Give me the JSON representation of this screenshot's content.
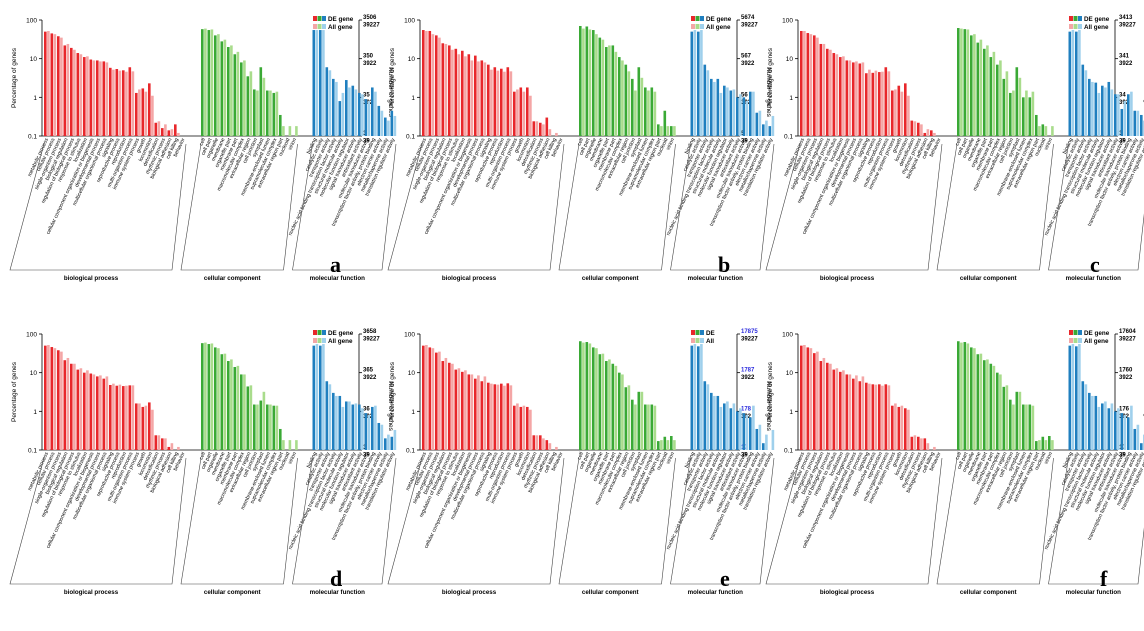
{
  "figure": {
    "categories": {
      "biological process": [
        "metabolic process",
        "cellular process",
        "single-organism process",
        "biological regulation",
        "regulation of biological process",
        "response to stimulus",
        "localization",
        "cellular component organization or biogenesis",
        "developmental process",
        "multicellular organismal process",
        "signaling",
        "reproductive process",
        "reproduction",
        "multi-organism process",
        "immune system process",
        "growth",
        "locomotion",
        "detoxification",
        "rhythmic process",
        "biological adhesion",
        "cell killing",
        "behavior"
      ],
      "cellular component": [
        "cell",
        "cell part",
        "organelle",
        "membrane",
        "organelle part",
        "membrane part",
        "macromolecular complex",
        "extracellular region",
        "cell junction",
        "symplast",
        "membrane-enclosed lumen",
        "supramolecular complex",
        "extracellular region part",
        "nucleoid",
        "virion"
      ],
      "molecular function": [
        "binding",
        "catalytic activity",
        "transporter activity",
        "nucleic acid binding transcription factor activity",
        "structural molecule activity",
        "molecular function regulator",
        "signal transducer activity",
        "antioxidant activity",
        "molecular transducer activity",
        "transcription factor activity, protein binding",
        "electron carrier activity",
        "metallochaperone activity",
        "translation regulator activity"
      ]
    },
    "group_labels": [
      "biological process",
      "cellular component",
      "molecular function"
    ],
    "colors": {
      "bp_de": "#e8272b",
      "bp_all": "#f4a6a6",
      "cc_de": "#3aa935",
      "cc_all": "#a9dc8c",
      "mf_de": "#1f7fbf",
      "mf_all": "#9fd0ec",
      "highlight": "#2b2bdd"
    }
  },
  "chart_data": [
    {
      "panel": "a",
      "type": "bar",
      "yscale": "log",
      "ylim": [
        0.1,
        100
      ],
      "ylabel": "Percentage of genes",
      "ylabel_right": "Number of genes",
      "yticks": [
        "0.1",
        "1",
        "10",
        "100"
      ],
      "legend": [
        "DE gene",
        "All gene"
      ],
      "right_axis_top": [
        "3506",
        "39227"
      ],
      "right_axis_labels": [
        [
          "350",
          "3922"
        ],
        [
          "35",
          "392"
        ],
        [
          "3",
          "39"
        ]
      ],
      "series": [
        {
          "name": "DE gene",
          "values": [
            50,
            45,
            38,
            22,
            19,
            14,
            11,
            9.5,
            9,
            8.5,
            5.8,
            5.4,
            5,
            6,
            1.3,
            1.7,
            2.3,
            0.22,
            0.16,
            0.14,
            0.2,
            0,
            58,
            55,
            40,
            28,
            20,
            13,
            8,
            3.5,
            1.6,
            6,
            1.5,
            1.3,
            0.35,
            0,
            0,
            55,
            55,
            6,
            3,
            0.8,
            2.8,
            2,
            1.3,
            0.9,
            1.8,
            0.6,
            0.3,
            0.45
          ]
        },
        {
          "name": "All gene",
          "values": [
            52,
            43,
            35,
            24,
            17,
            13,
            11.5,
            9,
            8.5,
            8,
            5.2,
            4.9,
            4.6,
            4.7,
            1.6,
            1.4,
            1.1,
            0.24,
            0.2,
            0.15,
            0.12,
            0,
            60,
            57,
            43,
            31,
            22,
            15,
            9,
            4.7,
            1.5,
            3.2,
            1.5,
            1.4,
            0.18,
            0.18,
            0.18,
            55,
            55,
            5,
            2.5,
            1.3,
            1.8,
            1.6,
            1.2,
            0.8,
            1.4,
            0.45,
            0.25,
            0.33
          ]
        }
      ]
    },
    {
      "panel": "b",
      "type": "bar",
      "yscale": "log",
      "ylim": [
        0.1,
        100
      ],
      "ylabel": "Percentage of genes",
      "ylabel_right": "Number of genes",
      "yticks": [
        "0.1",
        "1",
        "10",
        "100"
      ],
      "legend": [
        "DE gene",
        "All gene"
      ],
      "right_axis_top": [
        "5674",
        "39227"
      ],
      "right_axis_labels": [
        [
          "567",
          "3922"
        ],
        [
          "56",
          "392"
        ],
        [
          "5",
          "39"
        ]
      ],
      "series": [
        {
          "name": "DE gene",
          "values": [
            55,
            52,
            40,
            25,
            22,
            18,
            16,
            13,
            12,
            9,
            7,
            6,
            5.5,
            6,
            1.4,
            1.8,
            1.8,
            0.24,
            0.22,
            0.3,
            0,
            0,
            70,
            68,
            55,
            35,
            20,
            22,
            11,
            7,
            3,
            6,
            1.8,
            1.8,
            0.2,
            0.45,
            0.18,
            50,
            50,
            7,
            3,
            3,
            2,
            1.5,
            1,
            1,
            1.4,
            0.4,
            0.2,
            0.18
          ]
        },
        {
          "name": "All gene",
          "values": [
            52,
            43,
            35,
            24,
            17,
            13,
            11.5,
            9,
            8.5,
            8,
            5.2,
            4.9,
            4.6,
            4.7,
            1.6,
            1.4,
            1.1,
            0.24,
            0.2,
            0.15,
            0.12,
            0,
            60,
            57,
            43,
            31,
            22,
            15,
            9,
            4.7,
            1.5,
            3.2,
            1.5,
            1.4,
            0.18,
            0.18,
            0.18,
            55,
            55,
            5,
            2.5,
            1.3,
            1.8,
            1.6,
            1.2,
            0.8,
            1.4,
            0.45,
            0.25,
            0.33
          ]
        }
      ]
    },
    {
      "panel": "c",
      "type": "bar",
      "yscale": "log",
      "ylim": [
        0.1,
        100
      ],
      "ylabel": "Percentage of genes",
      "ylabel_right": "Number of genes",
      "yticks": [
        "0.1",
        "1",
        "10",
        "100"
      ],
      "legend": [
        "DE gene",
        "All gene"
      ],
      "right_axis_top": [
        "3413",
        "39227"
      ],
      "right_axis_labels": [
        [
          "341",
          "3922"
        ],
        [
          "34",
          "392"
        ],
        [
          "3",
          "39"
        ]
      ],
      "series": [
        {
          "name": "DE gene",
          "values": [
            52,
            46,
            40,
            24,
            18,
            14,
            11,
            9,
            8,
            7.5,
            4.2,
            4.3,
            4.5,
            6,
            1.5,
            2,
            2.3,
            0.25,
            0.22,
            0.12,
            0.14,
            0,
            62,
            58,
            40,
            26,
            18,
            11,
            7,
            3,
            1.3,
            6,
            1,
            1,
            0.35,
            0.2,
            0,
            50,
            50,
            7,
            3,
            2.4,
            2,
            2.5,
            1.2,
            0.5,
            1.2,
            0.45,
            0.35,
            0.4
          ]
        },
        {
          "name": "All gene",
          "values": [
            52,
            43,
            35,
            24,
            17,
            13,
            11.5,
            9,
            8.5,
            8,
            5.2,
            4.9,
            4.6,
            4.7,
            1.6,
            1.4,
            1.1,
            0.24,
            0.2,
            0.15,
            0.12,
            0,
            60,
            57,
            43,
            31,
            22,
            15,
            9,
            4.7,
            1.5,
            3.2,
            1.5,
            1.4,
            0.18,
            0.18,
            0.18,
            55,
            55,
            5,
            2.5,
            1.3,
            1.8,
            1.6,
            1.2,
            0.8,
            1.4,
            0.45,
            0.25,
            0.33
          ]
        }
      ]
    },
    {
      "panel": "d",
      "type": "bar",
      "yscale": "log",
      "ylim": [
        0.1,
        100
      ],
      "ylabel": "Percentage of genes",
      "ylabel_right": "Number of genes",
      "yticks": [
        "0.1",
        "1",
        "10",
        "100"
      ],
      "legend": [
        "DE gene",
        "All gene"
      ],
      "right_axis_top": [
        "3658",
        "39227"
      ],
      "right_axis_labels": [
        [
          "365",
          "3922"
        ],
        [
          "36",
          "392"
        ],
        [
          "3",
          "39"
        ]
      ],
      "series": [
        {
          "name": "DE gene",
          "values": [
            50,
            46,
            38,
            21,
            17,
            12,
            10,
            9.5,
            8,
            7,
            4.8,
            4.6,
            4.5,
            4.7,
            1.6,
            1.3,
            1.7,
            0.24,
            0.2,
            0.12,
            0.1,
            0,
            58,
            55,
            45,
            30,
            20,
            14,
            9,
            4.4,
            1.5,
            1.9,
            1.5,
            1.4,
            0.35,
            0,
            0,
            50,
            50,
            6,
            3,
            2.5,
            1.8,
            1.5,
            1.5,
            0.9,
            1.3,
            0.5,
            0.2,
            0.22
          ]
        },
        {
          "name": "All gene",
          "values": [
            52,
            43,
            35,
            24,
            17,
            13,
            11.5,
            9,
            8.5,
            8,
            5.2,
            4.9,
            4.6,
            4.7,
            1.6,
            1.4,
            1.1,
            0.24,
            0.2,
            0.15,
            0.12,
            0,
            60,
            57,
            43,
            31,
            22,
            15,
            9,
            4.7,
            1.5,
            3.2,
            1.5,
            1.4,
            0.18,
            0.18,
            0.18,
            55,
            55,
            5,
            2.5,
            1.3,
            1.8,
            1.6,
            1.2,
            0.8,
            1.4,
            0.45,
            0.25,
            0.33
          ]
        }
      ]
    },
    {
      "panel": "e",
      "type": "bar",
      "yscale": "log",
      "ylim": [
        0.1,
        100
      ],
      "ylabel": "Percentage of genes",
      "ylabel_right": "Number of genes",
      "yticks": [
        "0.1",
        "1",
        "10",
        "100"
      ],
      "legend": [
        "DE",
        "All"
      ],
      "right_axis_top": [
        "17875",
        "39227"
      ],
      "right_axis_labels": [
        [
          "1787",
          "3922"
        ],
        [
          "178",
          "392"
        ],
        [
          "17",
          "39"
        ]
      ],
      "right_axis_highlight": true,
      "series": [
        {
          "name": "DE",
          "values": [
            50,
            45,
            33,
            20,
            18,
            12,
            10.5,
            9,
            7,
            6,
            5.5,
            5,
            5.2,
            5.3,
            1.4,
            1.3,
            1.3,
            0.24,
            0.24,
            0.18,
            0.1,
            0,
            65,
            62,
            45,
            30,
            20,
            17,
            10,
            4.2,
            2,
            3.2,
            1.5,
            1.5,
            0.17,
            0.22,
            0.23,
            50,
            48,
            6,
            3,
            2.5,
            1.6,
            1.2,
            1,
            0.9,
            0.7,
            0.35,
            0.15,
            0
          ]
        },
        {
          "name": "All",
          "values": [
            52,
            43,
            35,
            24,
            17,
            13,
            11.5,
            9,
            8.5,
            8,
            5.2,
            4.9,
            4.6,
            4.7,
            1.6,
            1.4,
            1.1,
            0.24,
            0.2,
            0.15,
            0.12,
            0,
            60,
            57,
            43,
            31,
            22,
            15,
            9,
            4.7,
            1.5,
            3.2,
            1.5,
            1.4,
            0.18,
            0.18,
            0.18,
            55,
            55,
            5,
            2.5,
            1.3,
            1.8,
            1.6,
            1.2,
            0.8,
            1.4,
            0.45,
            0.25,
            0.33
          ]
        }
      ]
    },
    {
      "panel": "f",
      "type": "bar",
      "yscale": "log",
      "ylim": [
        0.1,
        100
      ],
      "ylabel": "Percentage of genes",
      "ylabel_right": "Number of genes",
      "yticks": [
        "0.1",
        "1",
        "10",
        "100"
      ],
      "legend": [
        "DE gene",
        "All gene"
      ],
      "right_axis_top": [
        "17604",
        "39227"
      ],
      "right_axis_labels": [
        [
          "1760",
          "3922"
        ],
        [
          "176",
          "392"
        ],
        [
          "17",
          "39"
        ]
      ],
      "series": [
        {
          "name": "DE gene",
          "values": [
            50,
            45,
            32,
            20,
            18,
            12,
            10.5,
            9,
            7,
            6,
            5.5,
            5,
            5,
            5,
            1.4,
            1.3,
            1.2,
            0.22,
            0.22,
            0.2,
            0.1,
            0,
            65,
            62,
            45,
            30,
            21,
            17,
            10,
            4.3,
            2,
            3.2,
            1.5,
            1.5,
            0.17,
            0.22,
            0.23,
            50,
            48,
            6,
            3,
            2.5,
            1.6,
            1.2,
            1,
            0.9,
            0.7,
            0.35,
            0.15,
            0
          ]
        },
        {
          "name": "All gene",
          "values": [
            52,
            43,
            35,
            24,
            17,
            13,
            11.5,
            9,
            8.5,
            8,
            5.2,
            4.9,
            4.6,
            4.7,
            1.6,
            1.4,
            1.1,
            0.24,
            0.2,
            0.15,
            0.12,
            0,
            60,
            57,
            43,
            31,
            22,
            15,
            9,
            4.7,
            1.5,
            3.2,
            1.5,
            1.4,
            0.18,
            0.18,
            0.18,
            55,
            55,
            5,
            2.5,
            1.3,
            1.8,
            1.6,
            1.2,
            0.8,
            1.4,
            0.45,
            0.25,
            0.33
          ]
        }
      ]
    }
  ]
}
